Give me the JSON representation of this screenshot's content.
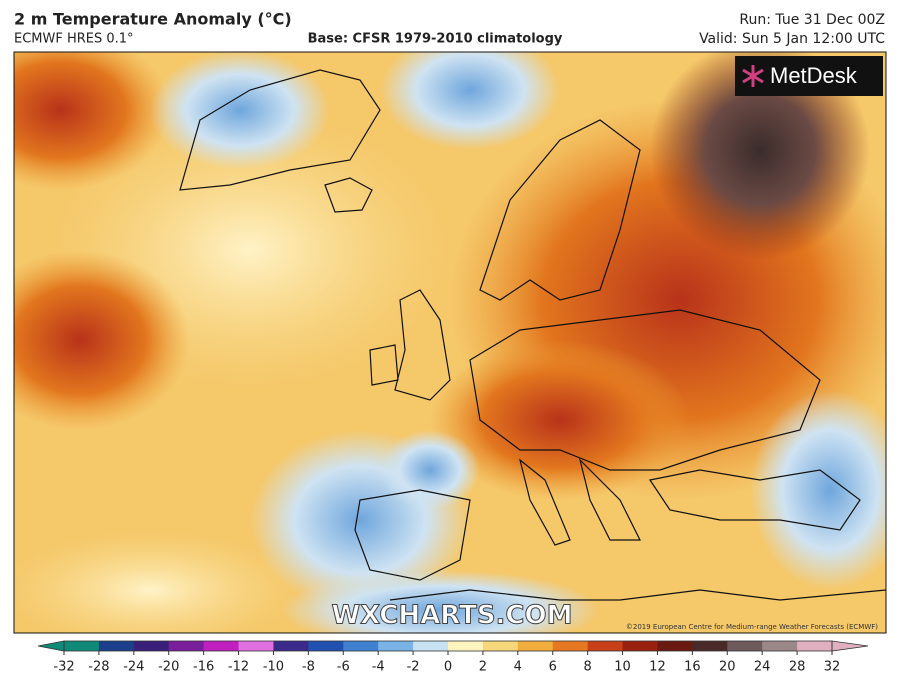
{
  "header": {
    "title": "2 m Temperature Anomaly (°C)",
    "model": "ECMWF HRES 0.1°",
    "base": "Base: CFSR 1979-2010 climatology",
    "run": "Run: Tue 31 Dec 00Z",
    "valid": "Valid: Sun 5 Jan 12:00 UTC"
  },
  "map": {
    "logo": "MetDesk",
    "watermark": "WXCHARTS.COM",
    "copyright": "©2019 European Centre for Medium-range Weather Forecasts (ECMWF)"
  },
  "colorbar": {
    "ticks": [
      -32,
      -28,
      -24,
      -20,
      -16,
      -12,
      -10,
      -8,
      -6,
      -4,
      -2,
      0,
      2,
      4,
      6,
      8,
      10,
      12,
      16,
      20,
      24,
      28,
      32
    ],
    "colors": [
      "#0f8a78",
      "#1c3f8c",
      "#3a1f7a",
      "#7a1f9c",
      "#c020c0",
      "#e070e0",
      "#3a2a8a",
      "#2050b0",
      "#3f80d0",
      "#7ab4e6",
      "#c8e2f4",
      "#fff4c0",
      "#f6d77a",
      "#f2ae3c",
      "#e57820",
      "#c8401a",
      "#9a2010",
      "#6a1a10",
      "#4a2a28",
      "#6e5a5a",
      "#9a8888",
      "#e0b0c0"
    ]
  }
}
